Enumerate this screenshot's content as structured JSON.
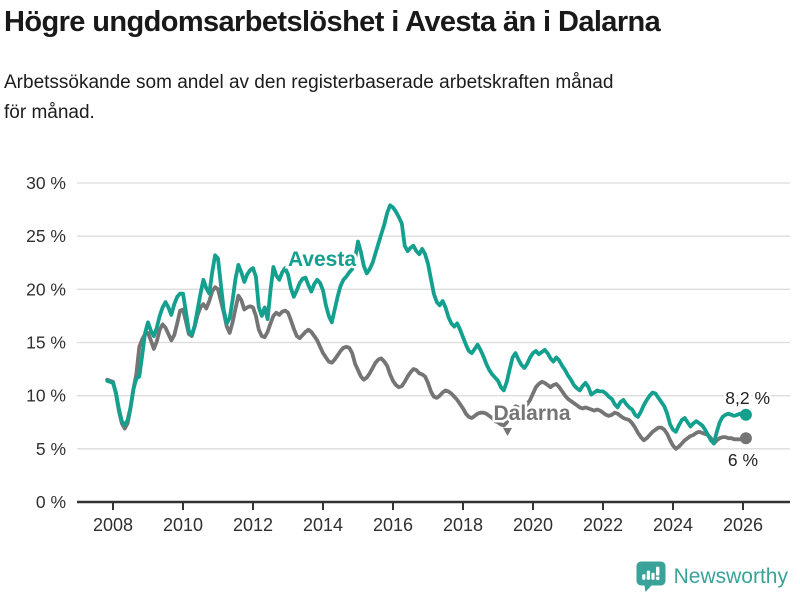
{
  "title": "Högre ungdomsarbetslöshet i Avesta än i Dalarna",
  "subtitle": {
    "line1": "Arbetssökande som andel av den registerbaserade arbetskraften månad",
    "line2": "för månad."
  },
  "footer": {
    "brand": "Newsworthy",
    "logo_icon": "newsworthy-speech-bubble-barchart-icon"
  },
  "colors": {
    "avesta": "#14a08f",
    "dalarna": "#757575",
    "grid": "#dcdcdc",
    "axis": "#333333",
    "text": "#1a1a1a",
    "brand_teal": "#3ba29a"
  },
  "chart_data": {
    "type": "line",
    "title": "Högre ungdomsarbetslöshet i Avesta än i Dalarna",
    "xlabel": "",
    "ylabel": "Arbetssökande som andel av den registerbaserade arbetskraften",
    "x_frequency": "monthly",
    "x_start": "2007-11",
    "x_end": "2026-02",
    "ylim": [
      0,
      30
    ],
    "grid": true,
    "legend_position": "inline-labels",
    "yticks": [
      0,
      5,
      10,
      15,
      20,
      25,
      30
    ],
    "ytick_labels": [
      "0 %",
      "5 %",
      "10 %",
      "15 %",
      "20 %",
      "25 %",
      "30 %"
    ],
    "xticks": [
      2008,
      2010,
      2012,
      2014,
      2016,
      2018,
      2020,
      2022,
      2024,
      2026
    ],
    "xtick_labels": [
      "2008",
      "2010",
      "2012",
      "2014",
      "2016",
      "2018",
      "2020",
      "2022",
      "2024",
      "2026"
    ],
    "series": [
      {
        "name": "Dalarna",
        "color": "#757575",
        "inline_label": "Dalarna",
        "inline_label_arrow": "down",
        "end_label": "6 %",
        "end_value": 6.0,
        "values": [
          11.5,
          11.4,
          11.3,
          10.2,
          8.6,
          7.4,
          6.9,
          7.4,
          8.8,
          10.6,
          12.0,
          14.6,
          15.3,
          15.8,
          15.9,
          15.2,
          14.4,
          15.1,
          16.2,
          16.7,
          16.4,
          15.8,
          15.2,
          15.7,
          16.8,
          18.0,
          18.1,
          17.0,
          15.8,
          15.6,
          16.5,
          17.6,
          18.3,
          18.6,
          18.2,
          18.9,
          19.8,
          20.2,
          20.0,
          18.9,
          17.8,
          16.5,
          15.9,
          16.9,
          18.2,
          19.4,
          19.0,
          18.1,
          18.3,
          18.4,
          18.3,
          17.5,
          16.2,
          15.6,
          15.5,
          16.0,
          16.8,
          17.5,
          17.8,
          17.6,
          17.9,
          18.0,
          17.8,
          17.1,
          16.3,
          15.6,
          15.4,
          15.7,
          16.0,
          16.2,
          16.0,
          15.6,
          15.2,
          14.6,
          14.0,
          13.6,
          13.2,
          13.1,
          13.4,
          13.8,
          14.2,
          14.5,
          14.6,
          14.5,
          14.0,
          13.0,
          12.4,
          11.8,
          11.5,
          11.7,
          12.1,
          12.6,
          13.1,
          13.4,
          13.5,
          13.2,
          12.8,
          12.0,
          11.4,
          11.0,
          10.8,
          10.9,
          11.3,
          11.8,
          12.2,
          12.5,
          12.4,
          12.1,
          12.0,
          11.8,
          11.2,
          10.4,
          9.9,
          9.8,
          10.0,
          10.3,
          10.5,
          10.4,
          10.2,
          9.9,
          9.6,
          9.2,
          8.8,
          8.3,
          8.0,
          7.9,
          8.1,
          8.3,
          8.4,
          8.4,
          8.3,
          8.1,
          7.9,
          7.6,
          7.5,
          7.3,
          7.2,
          7.5,
          8.1,
          8.7,
          9.0,
          8.9,
          8.8,
          8.9,
          9.2,
          9.6,
          10.2,
          10.8,
          11.1,
          11.3,
          11.2,
          11.0,
          10.8,
          11.0,
          11.1,
          10.8,
          10.4,
          10.0,
          9.7,
          9.5,
          9.3,
          9.1,
          8.9,
          8.8,
          8.9,
          8.8,
          8.7,
          8.6,
          8.7,
          8.6,
          8.4,
          8.2,
          8.1,
          8.2,
          8.4,
          8.3,
          8.1,
          7.9,
          7.8,
          7.7,
          7.4,
          7.0,
          6.5,
          6.1,
          5.8,
          6.0,
          6.3,
          6.6,
          6.8,
          7.0,
          7.0,
          6.8,
          6.4,
          5.8,
          5.3,
          5.0,
          5.2,
          5.5,
          5.8,
          6.0,
          6.2,
          6.3,
          6.5,
          6.6,
          6.5,
          6.4,
          6.3,
          6.0,
          5.5,
          5.8,
          6.0,
          6.1,
          6.1,
          6.0,
          6.0,
          5.9,
          5.9,
          5.9,
          5.9,
          6.0
        ]
      },
      {
        "name": "Avesta",
        "color": "#14a08f",
        "inline_label": "Avesta",
        "inline_label_arrow": "none",
        "end_label": "8,2 %",
        "end_value": 8.2,
        "values": [
          11.4,
          11.3,
          11.2,
          10.3,
          8.8,
          7.6,
          7.2,
          7.7,
          8.9,
          10.6,
          11.6,
          11.8,
          13.8,
          15.9,
          16.9,
          16.1,
          15.6,
          16.4,
          17.5,
          18.3,
          18.8,
          18.3,
          17.6,
          18.6,
          19.3,
          19.6,
          19.6,
          17.9,
          16.1,
          15.7,
          16.6,
          18.1,
          19.6,
          20.9,
          20.1,
          19.6,
          21.6,
          23.2,
          22.9,
          20.4,
          18.0,
          16.8,
          17.3,
          19.0,
          21.0,
          22.3,
          21.6,
          20.7,
          21.4,
          21.8,
          22.0,
          21.2,
          18.3,
          17.5,
          18.3,
          17.2,
          19.9,
          22.1,
          21.3,
          20.9,
          21.6,
          22.0,
          21.4,
          20.1,
          19.3,
          19.9,
          20.6,
          21.0,
          21.1,
          20.4,
          19.8,
          20.5,
          20.9,
          20.6,
          19.9,
          18.5,
          17.5,
          16.9,
          18.1,
          19.3,
          20.3,
          20.9,
          21.2,
          21.6,
          21.9,
          22.9,
          24.5,
          23.5,
          22.2,
          21.5,
          21.9,
          22.5,
          23.4,
          24.3,
          25.2,
          26.1,
          27.2,
          27.9,
          27.7,
          27.3,
          26.8,
          26.2,
          24.1,
          23.6,
          23.9,
          24.1,
          23.6,
          23.3,
          23.8,
          23.3,
          22.4,
          21.0,
          19.6,
          18.8,
          18.5,
          18.9,
          18.3,
          17.4,
          16.8,
          16.5,
          16.8,
          16.2,
          15.5,
          14.8,
          14.2,
          14.0,
          14.4,
          14.8,
          14.3,
          13.7,
          13.0,
          12.4,
          12.0,
          11.7,
          11.4,
          10.8,
          10.5,
          11.3,
          12.5,
          13.6,
          14.0,
          13.4,
          12.9,
          12.6,
          13.0,
          13.6,
          14.0,
          14.2,
          13.9,
          14.1,
          14.3,
          14.0,
          13.5,
          13.2,
          13.6,
          13.3,
          12.8,
          12.4,
          11.9,
          11.5,
          11.0,
          10.7,
          10.5,
          10.9,
          11.2,
          10.8,
          10.1,
          10.3,
          10.5,
          10.4,
          10.4,
          10.2,
          9.9,
          9.7,
          9.2,
          8.9,
          9.4,
          9.6,
          9.2,
          8.9,
          8.7,
          8.2,
          8.0,
          8.5,
          9.1,
          9.6,
          10.0,
          10.3,
          10.2,
          9.8,
          9.4,
          9.0,
          8.3,
          7.3,
          6.8,
          6.6,
          7.2,
          7.7,
          7.9,
          7.5,
          7.1,
          7.4,
          7.6,
          7.4,
          7.2,
          6.8,
          6.3,
          5.8,
          5.5,
          6.6,
          7.5,
          8.0,
          8.2,
          8.3,
          8.2,
          8.1,
          8.2,
          8.3,
          8.1,
          8.2
        ]
      }
    ]
  }
}
